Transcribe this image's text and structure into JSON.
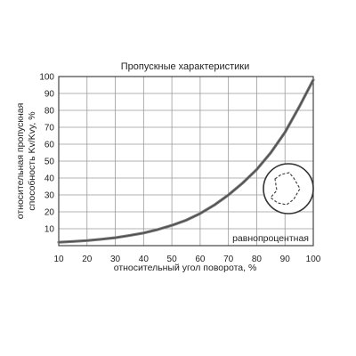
{
  "chart_data": {
    "type": "line",
    "title": "Пропускные характеристики",
    "xlabel": "относительный угол поворота, %",
    "ylabel_lines": [
      "относительная пропускная",
      "способность Kv/Kvy, %"
    ],
    "xlim": [
      10,
      100
    ],
    "ylim": [
      0,
      100
    ],
    "xticks": [
      10,
      20,
      30,
      40,
      50,
      60,
      70,
      80,
      90,
      100
    ],
    "yticks": [
      10,
      20,
      30,
      40,
      50,
      60,
      70,
      80,
      90,
      100
    ],
    "grid": true,
    "annotation": "равнопроцентная",
    "series": [
      {
        "x": [
          10,
          15,
          20,
          25,
          30,
          35,
          40,
          45,
          50,
          55,
          60,
          65,
          70,
          75,
          80,
          85,
          90,
          95,
          100
        ],
        "y": [
          2,
          2.5,
          3,
          3.8,
          4.7,
          6,
          7.5,
          9.5,
          12,
          15,
          19,
          24,
          30,
          37,
          45,
          55,
          67,
          82,
          98
        ]
      }
    ]
  },
  "colors": {
    "curve": "#6a6a6a",
    "grid": "#9a9a9a"
  },
  "icons": {
    "inset": "valve-disc-icon"
  }
}
